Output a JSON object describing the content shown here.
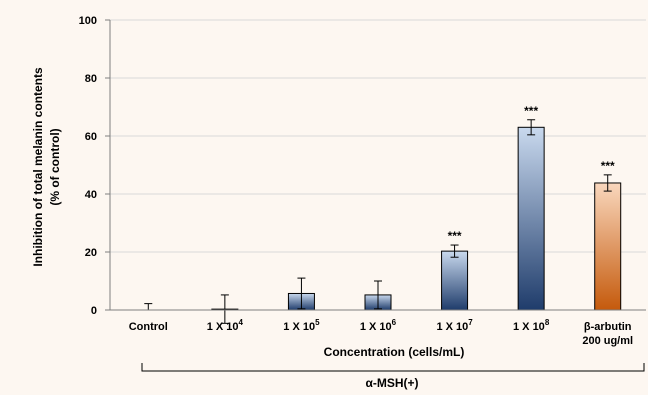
{
  "chart_data": {
    "type": "bar",
    "categories": [
      "Control",
      "1 X 10^4",
      "1 X 10^5",
      "1 X 10^6",
      "1 X 10^7",
      "1 X 10^8",
      "β-arbutin 200 ug/ml"
    ],
    "category_labels": [
      {
        "lines": [
          {
            "base": "Control",
            "sup": ""
          }
        ]
      },
      {
        "lines": [
          {
            "base": "1 X 10",
            "sup": "4"
          }
        ]
      },
      {
        "lines": [
          {
            "base": "1 X 10",
            "sup": "5"
          }
        ]
      },
      {
        "lines": [
          {
            "base": "1 X 10",
            "sup": "6"
          }
        ]
      },
      {
        "lines": [
          {
            "base": "1 X 10",
            "sup": "7"
          }
        ]
      },
      {
        "lines": [
          {
            "base": "1 X 10",
            "sup": "8"
          }
        ]
      },
      {
        "lines": [
          {
            "base": "β-arbutin",
            "sup": ""
          },
          {
            "base": "200 ug/ml",
            "sup": ""
          }
        ]
      }
    ],
    "values": [
      0,
      0.3,
      5.7,
      5.2,
      20.3,
      63.0,
      43.8
    ],
    "errors": [
      2.2,
      4.9,
      5.3,
      4.8,
      2.1,
      2.6,
      2.8
    ],
    "significance": [
      "",
      "",
      "",
      "",
      "***",
      "***",
      "***"
    ],
    "bar_styles": [
      "blue",
      "blue",
      "blue",
      "blue",
      "blue",
      "blue",
      "orange"
    ],
    "ylabel_lines": [
      "Inhibition of total melanin contents",
      "(% of control)"
    ],
    "xlabel": "Concentration (cells/mL)",
    "group_label": "α-MSH(+)",
    "ylim": [
      0,
      100
    ],
    "yticks": [
      0,
      20,
      40,
      60,
      80,
      100
    ],
    "grid": true,
    "colors": {
      "blue_top": "#c9d9ee",
      "blue_bottom": "#1f3c6b",
      "orange_top": "#f9d7bd",
      "orange_bottom": "#c55a0c",
      "grid": "#d9d9d9",
      "axis": "#7f7f7f"
    }
  }
}
